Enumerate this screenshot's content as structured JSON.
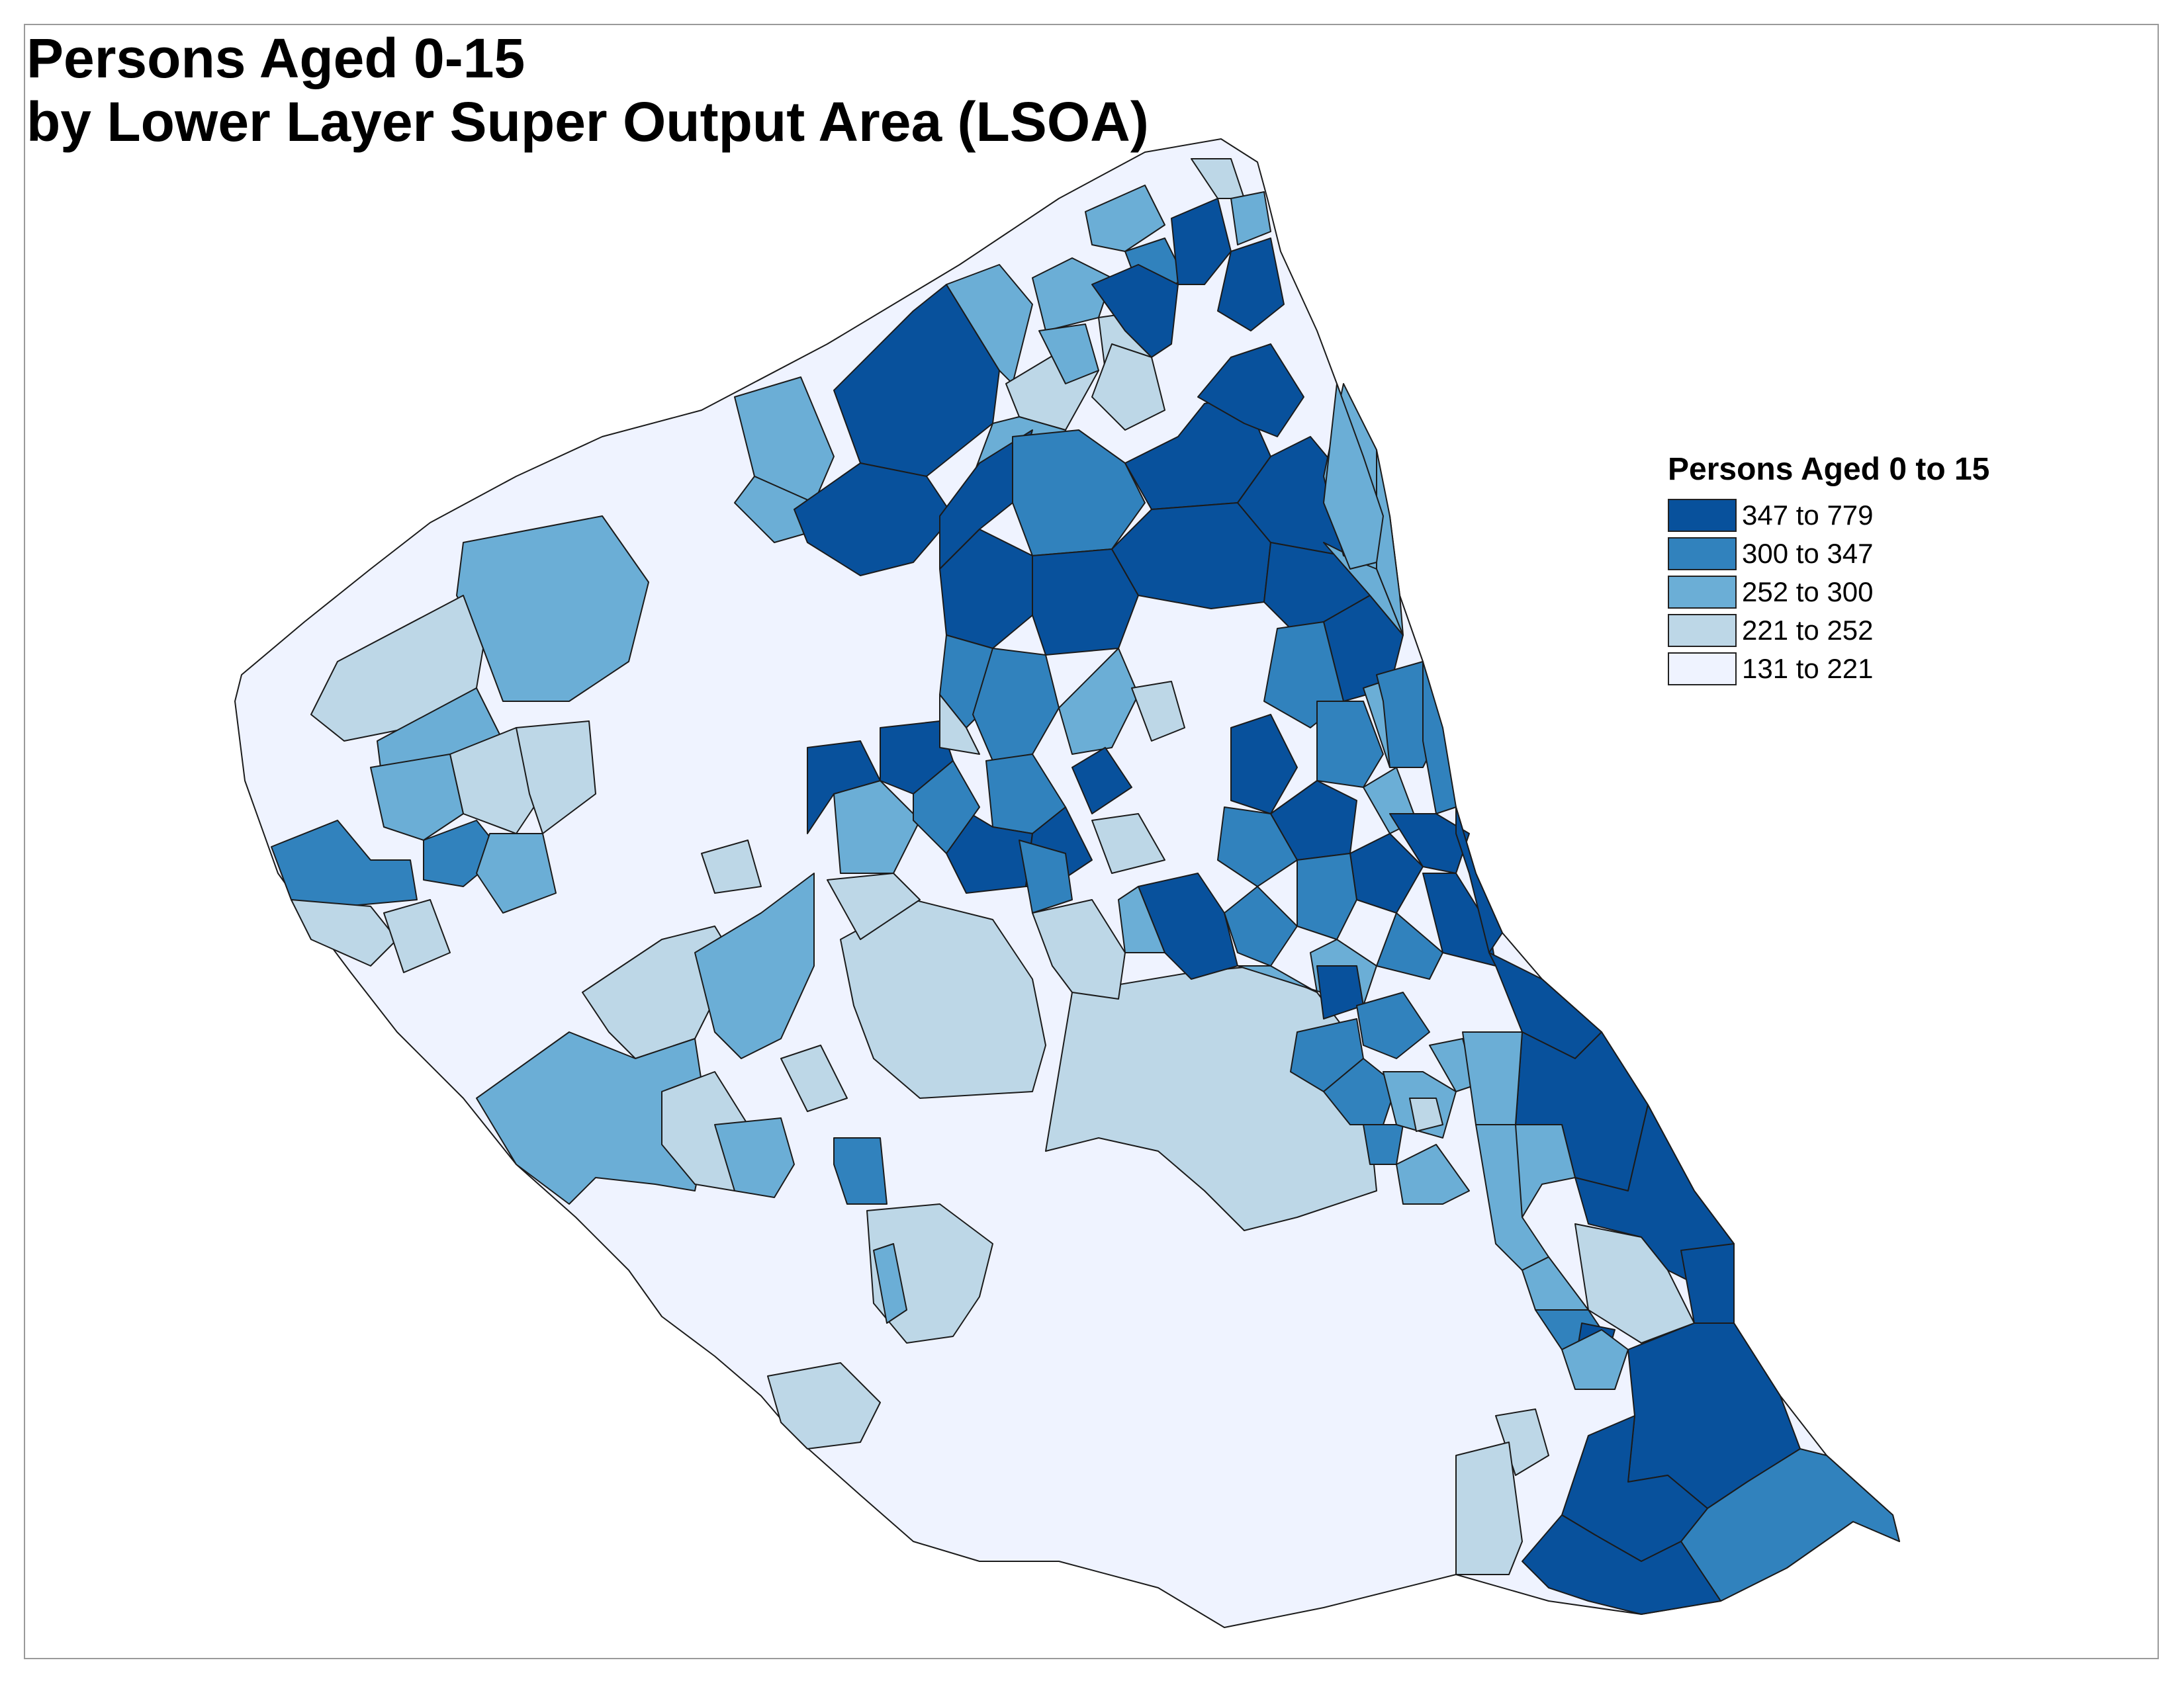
{
  "title": {
    "line1": "Persons Aged 0-15",
    "line2": "by Lower Layer Super Output Area (LSOA)"
  },
  "legend": {
    "title": "Persons Aged 0 to 15",
    "classes": [
      {
        "label": "347 to 779",
        "color": "#08519c"
      },
      {
        "label": "300 to 347",
        "color": "#3182bd"
      },
      {
        "label": "252 to 300",
        "color": "#6baed6"
      },
      {
        "label": "221 to 252",
        "color": "#bdd7e7"
      },
      {
        "label": "131 to 221",
        "color": "#eff3ff"
      }
    ]
  },
  "map": {
    "stroke_color": "#1b1b1b",
    "outline_class": "131 to 221"
  }
}
